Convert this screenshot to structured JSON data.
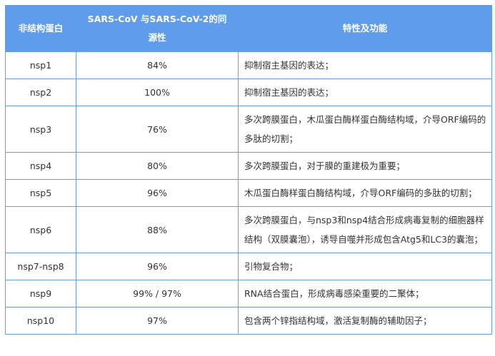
{
  "table": {
    "headers": [
      "非结构蛋白",
      "SARS-CoV 与SARS-CoV-2的同源性",
      "特性及功能"
    ],
    "header_color": "#5f9cec",
    "border_color": "#6a9fe6",
    "rows": [
      {
        "protein": "nsp1",
        "homology": "84%",
        "function": "抑制宿主基因的表达；"
      },
      {
        "protein": "nsp2",
        "homology": "100%",
        "function": "抑制宿主基因的表达；"
      },
      {
        "protein": "nsp3",
        "homology": "76%",
        "function": "多次跨膜蛋白，木瓜蛋白酶样蛋白酶结构域，介导ORF编码的多肽的切割；"
      },
      {
        "protein": "nsp4",
        "homology": "80%",
        "function": "多次跨膜蛋白，对于膜的重建极为重要；"
      },
      {
        "protein": "nsp5",
        "homology": "96%",
        "function": "木瓜蛋白酶样蛋白酶结构域，介导ORF编码的多肽的切割；"
      },
      {
        "protein": "nsp6",
        "homology": "88%",
        "function": "多次跨膜蛋白，与nsp3和nsp4结合形成病毒复制的细胞器样结构（双膜囊泡），诱导自噬并形成包含Atg5和LC3的囊泡；"
      },
      {
        "protein": "nsp7-nsp8",
        "homology": "96%",
        "function": "引物复合物；"
      },
      {
        "protein": "nsp9",
        "homology": "99% / 97%",
        "function": "RNA结合蛋白，形成病毒感染重要的二聚体；"
      },
      {
        "protein": "nsp10",
        "homology": "97%",
        "function": "包含两个锌指结构域，激活复制酶的辅助因子；"
      }
    ]
  }
}
